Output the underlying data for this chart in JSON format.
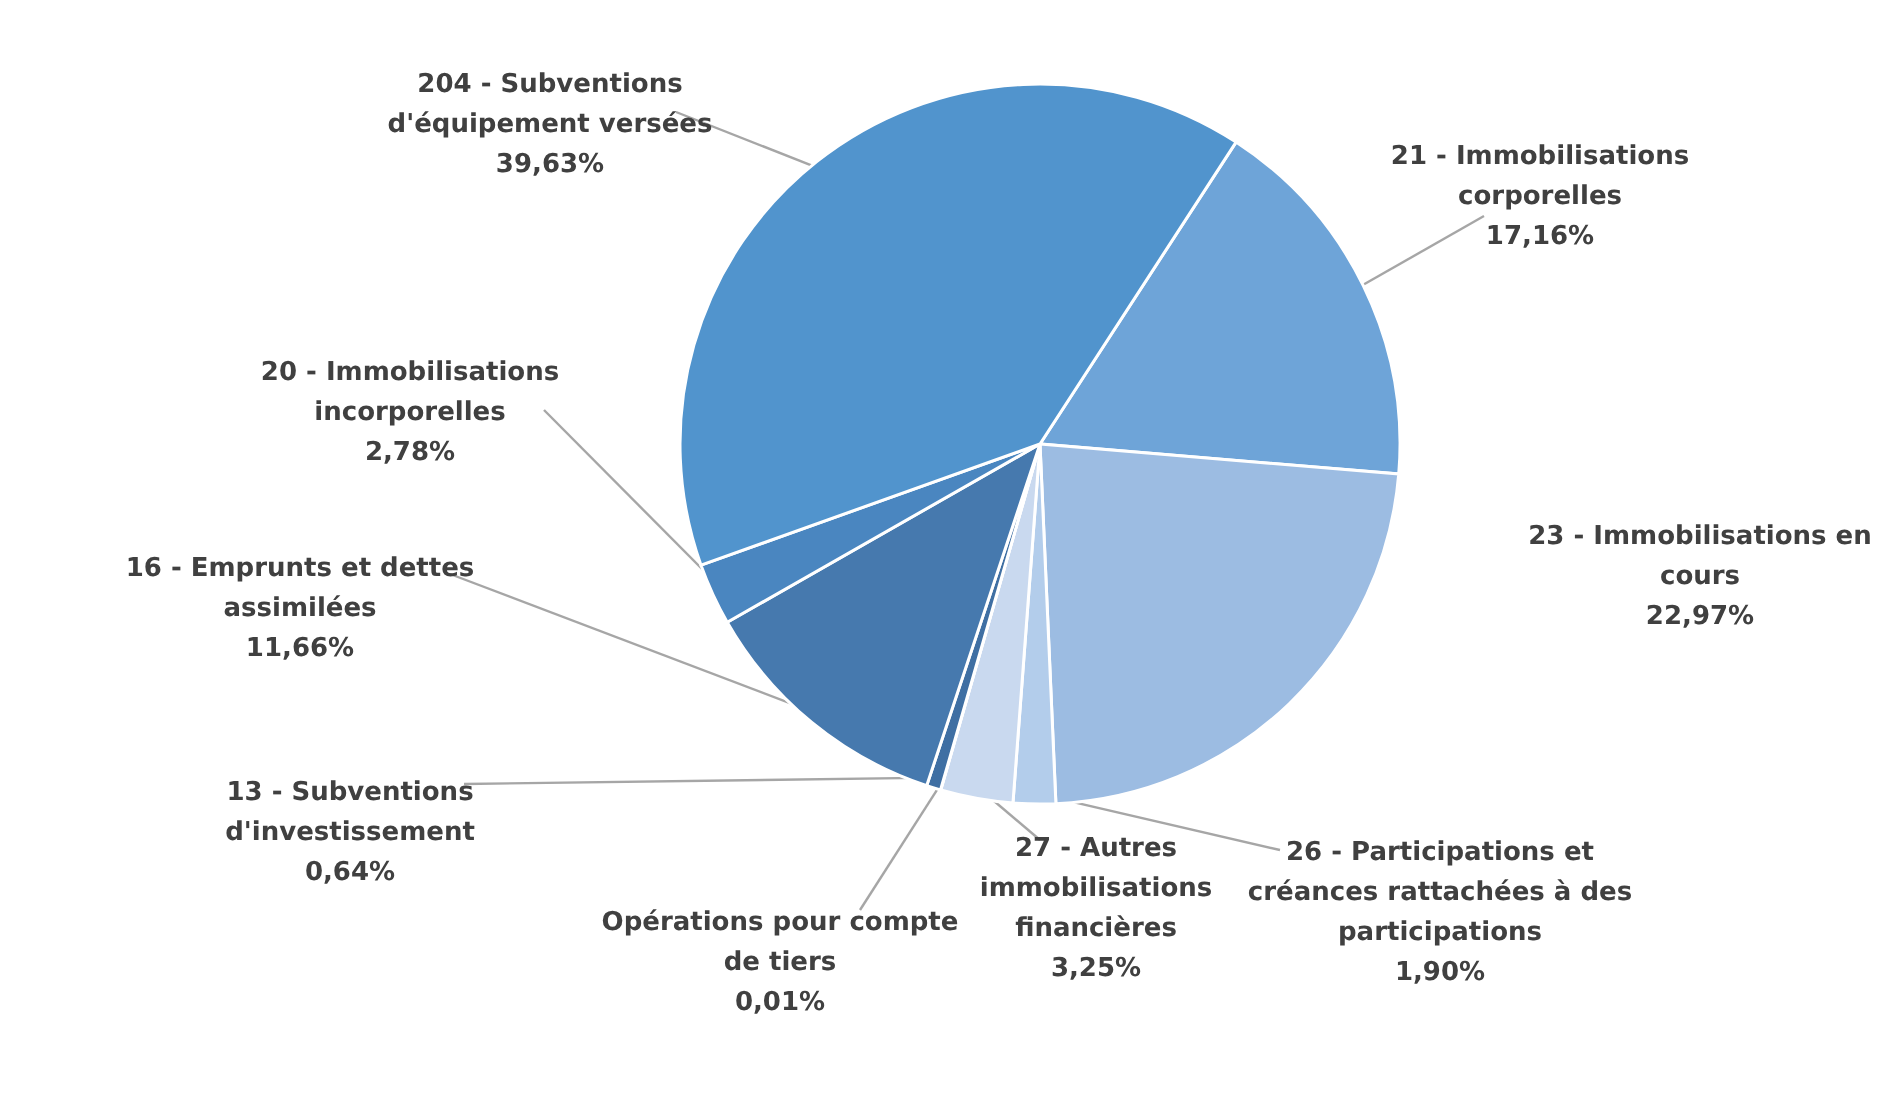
{
  "chart_data": {
    "type": "pie",
    "categories": [
      "21 - Immobilisations corporelles",
      "23 - Immobilisations en cours",
      "26 - Participations et créances rattachées à des participations",
      "27 - Autres immobilisations financières",
      "Opérations pour compte de tiers",
      "13 - Subventions d'investissement",
      "16 - Emprunts et dettes assimilées",
      "20 - Immobilisations incorporelles",
      "204 - Subventions d'équipement versées"
    ],
    "values": [
      17.16,
      22.97,
      1.9,
      3.25,
      0.01,
      0.64,
      11.66,
      2.78,
      39.63
    ],
    "value_labels": [
      "17,16%",
      "22,97%",
      "1,90%",
      "3,25%",
      "0,01%",
      "0,64%",
      "11,66%",
      "2,78%",
      "39,63%"
    ],
    "colors": [
      "#6ea4d8",
      "#9cbce2",
      "#b3cdeb",
      "#c9d9ef",
      "#bcd0ea",
      "#3f6fa3",
      "#4679ae",
      "#4a86c0",
      "#5194cd"
    ]
  }
}
